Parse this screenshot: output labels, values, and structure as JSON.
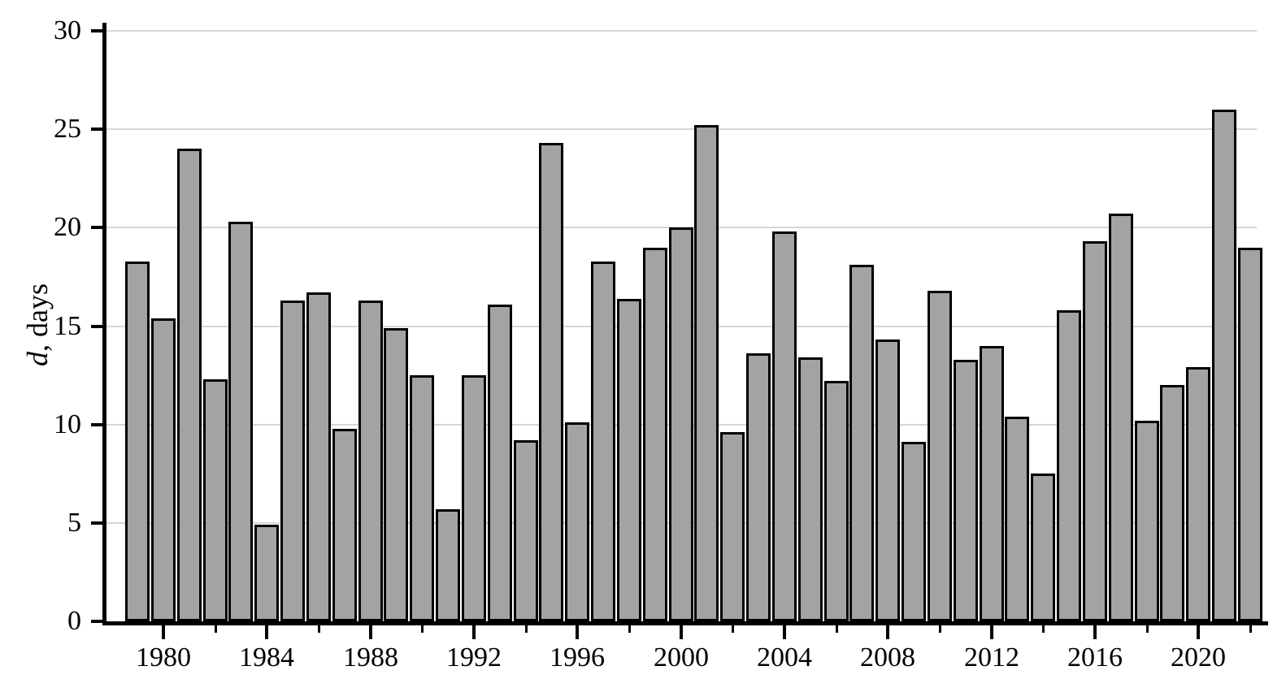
{
  "chart_data": {
    "type": "bar",
    "title": "",
    "ylabel_italic": "d",
    "ylabel_rest": ", days",
    "xlabel": "",
    "ylim": [
      0,
      30
    ],
    "grid": "horizontal gridlines at multiples of 5",
    "legend": null,
    "yticks": [
      0,
      5,
      10,
      15,
      20,
      25,
      30
    ],
    "xticks_labeled": [
      1980,
      1984,
      1988,
      1992,
      1996,
      2000,
      2004,
      2008,
      2012,
      2016,
      2020
    ],
    "xticks_minor": [
      1982,
      1986,
      1990,
      1994,
      1998,
      2002,
      2006,
      2010,
      2014,
      2018,
      2022
    ],
    "categories": [
      1979,
      1980,
      1981,
      1982,
      1983,
      1984,
      1985,
      1986,
      1987,
      1988,
      1989,
      1990,
      1991,
      1992,
      1993,
      1994,
      1995,
      1996,
      1997,
      1998,
      1999,
      2000,
      2001,
      2002,
      2003,
      2004,
      2005,
      2006,
      2007,
      2008,
      2009,
      2010,
      2011,
      2012,
      2013,
      2014,
      2015,
      2016,
      2017,
      2018,
      2019,
      2020,
      2021,
      2022
    ],
    "values": [
      18.3,
      15.4,
      24.0,
      12.3,
      20.3,
      4.9,
      16.3,
      16.7,
      9.8,
      16.3,
      14.9,
      12.5,
      5.7,
      12.5,
      16.1,
      9.2,
      24.3,
      10.1,
      18.3,
      16.4,
      19.0,
      20.0,
      25.2,
      9.6,
      13.6,
      19.8,
      13.4,
      12.2,
      18.1,
      14.3,
      9.1,
      16.8,
      13.3,
      14.0,
      10.4,
      7.5,
      15.8,
      19.3,
      20.7,
      10.2,
      12.0,
      12.9,
      26.0,
      19.0
    ],
    "colors": {
      "bar_fill": "#a3a3a3",
      "bar_border": "#000000",
      "gridline": "#d6d6d6",
      "axis": "#000000",
      "background": "#ffffff",
      "text": "#000000"
    }
  }
}
